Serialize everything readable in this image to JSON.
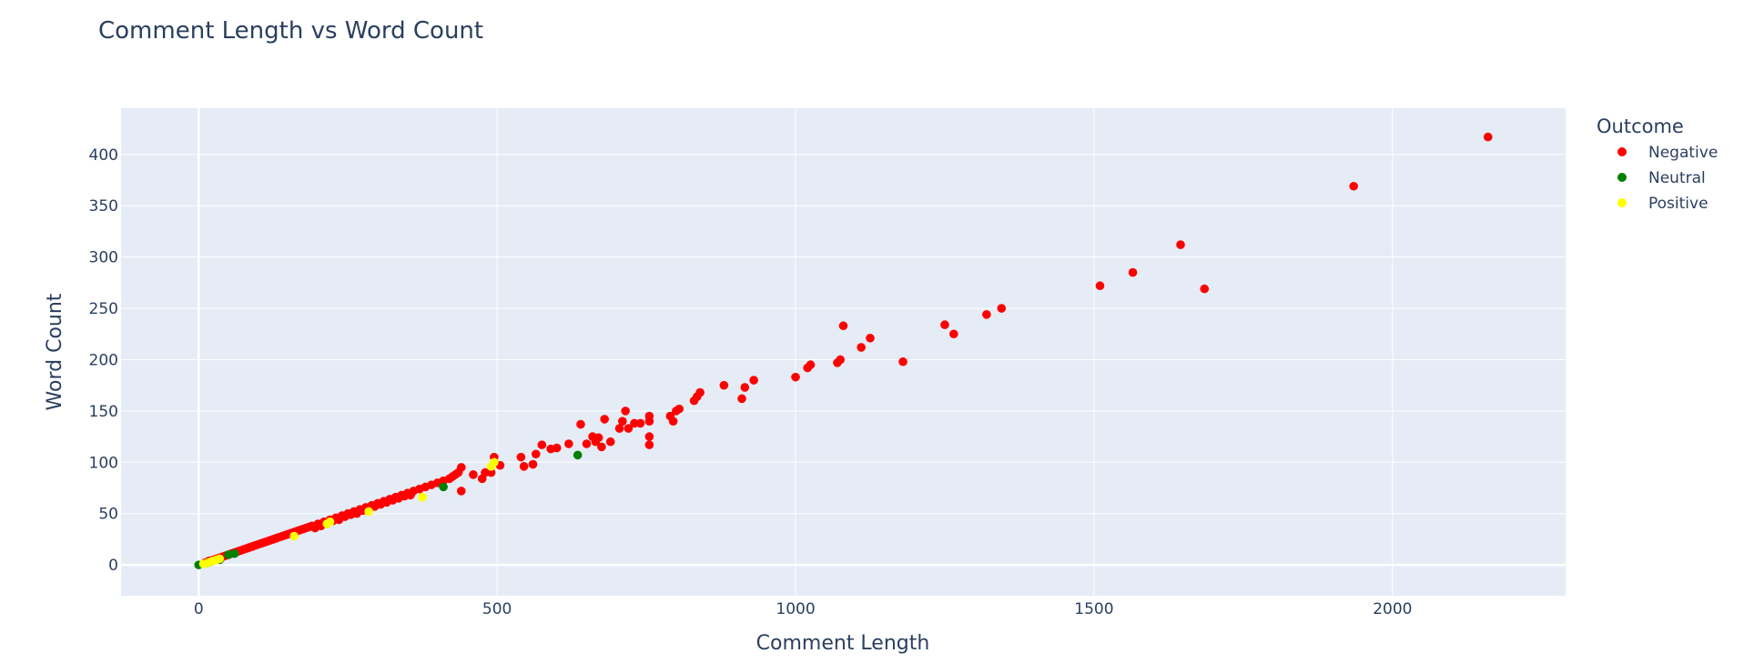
{
  "chart_data": {
    "type": "scatter",
    "title": "Comment Length vs Word Count",
    "xlabel": "Comment Length",
    "ylabel": "Word Count",
    "xlim": [
      -130,
      2290
    ],
    "ylim": [
      -30,
      445
    ],
    "x_ticks": [
      0,
      500,
      1000,
      1500,
      2000
    ],
    "y_ticks": [
      0,
      50,
      100,
      150,
      200,
      250,
      300,
      350,
      400
    ],
    "grid": true,
    "legend": {
      "title": "Outcome",
      "placement": "top-right"
    },
    "series": [
      {
        "name": "Negative",
        "color": "#ff0000",
        "points": [
          [
            10,
            2
          ],
          [
            15,
            3
          ],
          [
            18,
            4
          ],
          [
            22,
            4
          ],
          [
            25,
            5
          ],
          [
            30,
            6
          ],
          [
            35,
            7
          ],
          [
            40,
            8
          ],
          [
            45,
            9
          ],
          [
            50,
            10
          ],
          [
            55,
            11
          ],
          [
            60,
            12
          ],
          [
            65,
            13
          ],
          [
            70,
            14
          ],
          [
            75,
            15
          ],
          [
            80,
            16
          ],
          [
            85,
            17
          ],
          [
            90,
            18
          ],
          [
            95,
            19
          ],
          [
            100,
            20
          ],
          [
            105,
            21
          ],
          [
            110,
            22
          ],
          [
            115,
            23
          ],
          [
            120,
            24
          ],
          [
            125,
            25
          ],
          [
            130,
            26
          ],
          [
            135,
            27
          ],
          [
            140,
            28
          ],
          [
            145,
            29
          ],
          [
            150,
            30
          ],
          [
            155,
            31
          ],
          [
            160,
            32
          ],
          [
            165,
            33
          ],
          [
            170,
            34
          ],
          [
            175,
            35
          ],
          [
            180,
            36
          ],
          [
            185,
            37
          ],
          [
            190,
            38
          ],
          [
            195,
            36
          ],
          [
            200,
            40
          ],
          [
            205,
            38
          ],
          [
            210,
            42
          ],
          [
            215,
            40
          ],
          [
            220,
            44
          ],
          [
            225,
            43
          ],
          [
            230,
            46
          ],
          [
            235,
            44
          ],
          [
            240,
            48
          ],
          [
            245,
            47
          ],
          [
            250,
            50
          ],
          [
            255,
            49
          ],
          [
            260,
            52
          ],
          [
            265,
            50
          ],
          [
            270,
            54
          ],
          [
            275,
            53
          ],
          [
            280,
            56
          ],
          [
            285,
            55
          ],
          [
            290,
            58
          ],
          [
            295,
            57
          ],
          [
            300,
            60
          ],
          [
            305,
            59
          ],
          [
            310,
            62
          ],
          [
            315,
            61
          ],
          [
            320,
            64
          ],
          [
            325,
            63
          ],
          [
            330,
            66
          ],
          [
            335,
            65
          ],
          [
            340,
            68
          ],
          [
            345,
            67
          ],
          [
            350,
            70
          ],
          [
            355,
            68
          ],
          [
            360,
            72
          ],
          [
            370,
            74
          ],
          [
            380,
            76
          ],
          [
            390,
            78
          ],
          [
            400,
            80
          ],
          [
            410,
            82
          ],
          [
            420,
            84
          ],
          [
            425,
            86
          ],
          [
            430,
            88
          ],
          [
            435,
            90
          ],
          [
            440,
            95
          ],
          [
            440,
            72
          ],
          [
            460,
            88
          ],
          [
            475,
            84
          ],
          [
            480,
            90
          ],
          [
            490,
            90
          ],
          [
            495,
            105
          ],
          [
            505,
            97
          ],
          [
            540,
            105
          ],
          [
            545,
            96
          ],
          [
            560,
            98
          ],
          [
            565,
            108
          ],
          [
            575,
            117
          ],
          [
            590,
            113
          ],
          [
            600,
            114
          ],
          [
            620,
            118
          ],
          [
            640,
            137
          ],
          [
            650,
            118
          ],
          [
            660,
            125
          ],
          [
            665,
            120
          ],
          [
            670,
            124
          ],
          [
            675,
            115
          ],
          [
            680,
            142
          ],
          [
            690,
            120
          ],
          [
            705,
            133
          ],
          [
            710,
            140
          ],
          [
            715,
            150
          ],
          [
            720,
            133
          ],
          [
            730,
            138
          ],
          [
            740,
            138
          ],
          [
            755,
            145
          ],
          [
            755,
            140
          ],
          [
            755,
            117
          ],
          [
            755,
            125
          ],
          [
            790,
            145
          ],
          [
            795,
            140
          ],
          [
            800,
            150
          ],
          [
            805,
            152
          ],
          [
            830,
            160
          ],
          [
            835,
            164
          ],
          [
            840,
            168
          ],
          [
            880,
            175
          ],
          [
            910,
            162
          ],
          [
            915,
            173
          ],
          [
            930,
            180
          ],
          [
            1000,
            183
          ],
          [
            1020,
            192
          ],
          [
            1025,
            195
          ],
          [
            1070,
            197
          ],
          [
            1075,
            200
          ],
          [
            1080,
            233
          ],
          [
            1110,
            212
          ],
          [
            1125,
            221
          ],
          [
            1180,
            198
          ],
          [
            1250,
            234
          ],
          [
            1265,
            225
          ],
          [
            1320,
            244
          ],
          [
            1345,
            250
          ],
          [
            1510,
            272
          ],
          [
            1565,
            285
          ],
          [
            1645,
            312
          ],
          [
            1685,
            269
          ],
          [
            1935,
            369
          ],
          [
            2160,
            417
          ]
        ]
      },
      {
        "name": "Neutral",
        "color": "#008000",
        "points": [
          [
            0,
            0
          ],
          [
            15,
            2
          ],
          [
            20,
            3
          ],
          [
            35,
            5
          ],
          [
            50,
            10
          ],
          [
            60,
            11
          ],
          [
            410,
            76
          ],
          [
            635,
            107
          ]
        ]
      },
      {
        "name": "Positive",
        "color": "#ffff00",
        "points": [
          [
            8,
            1
          ],
          [
            15,
            2
          ],
          [
            20,
            3
          ],
          [
            25,
            4
          ],
          [
            30,
            5
          ],
          [
            35,
            6
          ],
          [
            160,
            28
          ],
          [
            215,
            40
          ],
          [
            220,
            42
          ],
          [
            285,
            52
          ],
          [
            375,
            66
          ],
          [
            490,
            96
          ],
          [
            495,
            100
          ]
        ]
      }
    ]
  }
}
